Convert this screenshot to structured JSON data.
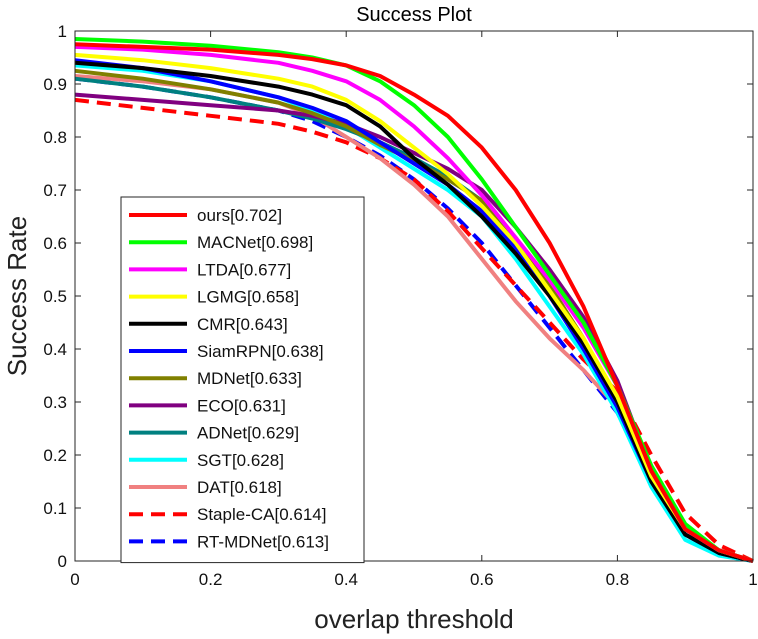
{
  "chart_data": {
    "type": "line",
    "title": "Success Plot",
    "xlabel": "overlap threshold",
    "ylabel": "Success Rate",
    "xlim": [
      0,
      1
    ],
    "ylim": [
      0,
      1
    ],
    "xticks": [
      "0",
      "0.2",
      "0.4",
      "0.6",
      "0.8",
      "1"
    ],
    "yticks": [
      "0",
      "0.1",
      "0.2",
      "0.3",
      "0.4",
      "0.5",
      "0.6",
      "0.7",
      "0.8",
      "0.9",
      "1"
    ],
    "grid": false,
    "legend_position": "lower-left",
    "series": [
      {
        "name": "ours[0.702]",
        "color": "#ff0000",
        "dashed": false,
        "x": [
          0,
          0.1,
          0.2,
          0.3,
          0.35,
          0.4,
          0.45,
          0.5,
          0.55,
          0.6,
          0.65,
          0.7,
          0.75,
          0.8,
          0.85,
          0.9,
          0.95,
          1
        ],
        "y": [
          0.975,
          0.97,
          0.965,
          0.955,
          0.947,
          0.935,
          0.915,
          0.88,
          0.84,
          0.78,
          0.7,
          0.6,
          0.48,
          0.33,
          0.17,
          0.06,
          0.02,
          0
        ]
      },
      {
        "name": "MACNet[0.698]",
        "color": "#00ff00",
        "dashed": false,
        "x": [
          0,
          0.1,
          0.2,
          0.3,
          0.35,
          0.4,
          0.45,
          0.5,
          0.55,
          0.6,
          0.65,
          0.7,
          0.75,
          0.8,
          0.85,
          0.9,
          0.95,
          1
        ],
        "y": [
          0.985,
          0.98,
          0.972,
          0.96,
          0.95,
          0.935,
          0.905,
          0.86,
          0.8,
          0.72,
          0.63,
          0.54,
          0.45,
          0.33,
          0.18,
          0.07,
          0.02,
          0
        ]
      },
      {
        "name": "LTDA[0.677]",
        "color": "#ff00ff",
        "dashed": false,
        "x": [
          0,
          0.1,
          0.2,
          0.3,
          0.35,
          0.4,
          0.45,
          0.5,
          0.55,
          0.6,
          0.65,
          0.7,
          0.75,
          0.8,
          0.85,
          0.9,
          0.95,
          1
        ],
        "y": [
          0.97,
          0.965,
          0.955,
          0.94,
          0.925,
          0.905,
          0.87,
          0.82,
          0.76,
          0.69,
          0.61,
          0.53,
          0.44,
          0.33,
          0.17,
          0.06,
          0.02,
          0
        ]
      },
      {
        "name": "LGMG[0.658]",
        "color": "#ffff00",
        "dashed": false,
        "x": [
          0,
          0.1,
          0.2,
          0.3,
          0.35,
          0.4,
          0.45,
          0.5,
          0.55,
          0.6,
          0.65,
          0.7,
          0.75,
          0.8,
          0.85,
          0.9,
          0.95,
          1
        ],
        "y": [
          0.955,
          0.945,
          0.93,
          0.91,
          0.895,
          0.87,
          0.83,
          0.78,
          0.73,
          0.67,
          0.6,
          0.51,
          0.42,
          0.31,
          0.16,
          0.06,
          0.02,
          0
        ]
      },
      {
        "name": "CMR[0.643]",
        "color": "#000000",
        "dashed": false,
        "x": [
          0,
          0.1,
          0.2,
          0.3,
          0.35,
          0.4,
          0.45,
          0.5,
          0.55,
          0.6,
          0.65,
          0.7,
          0.75,
          0.8,
          0.85,
          0.9,
          0.95,
          1
        ],
        "y": [
          0.94,
          0.93,
          0.915,
          0.895,
          0.88,
          0.86,
          0.82,
          0.76,
          0.71,
          0.65,
          0.58,
          0.5,
          0.41,
          0.3,
          0.15,
          0.05,
          0.015,
          0
        ]
      },
      {
        "name": "SiamRPN[0.638]",
        "color": "#0000ff",
        "dashed": false,
        "x": [
          0,
          0.1,
          0.2,
          0.3,
          0.35,
          0.4,
          0.45,
          0.5,
          0.55,
          0.6,
          0.65,
          0.7,
          0.75,
          0.8,
          0.85,
          0.9,
          0.95,
          1
        ],
        "y": [
          0.945,
          0.93,
          0.905,
          0.875,
          0.855,
          0.83,
          0.79,
          0.75,
          0.71,
          0.66,
          0.59,
          0.5,
          0.4,
          0.29,
          0.15,
          0.05,
          0.015,
          0
        ]
      },
      {
        "name": "MDNet[0.633]",
        "color": "#808000",
        "dashed": false,
        "x": [
          0,
          0.1,
          0.2,
          0.3,
          0.35,
          0.4,
          0.45,
          0.5,
          0.55,
          0.6,
          0.65,
          0.7,
          0.75,
          0.8,
          0.85,
          0.9,
          0.95,
          1
        ],
        "y": [
          0.925,
          0.91,
          0.89,
          0.865,
          0.845,
          0.82,
          0.785,
          0.755,
          0.72,
          0.68,
          0.61,
          0.52,
          0.42,
          0.3,
          0.16,
          0.06,
          0.02,
          0
        ]
      },
      {
        "name": "ECO[0.631]",
        "color": "#800080",
        "dashed": false,
        "x": [
          0,
          0.1,
          0.2,
          0.3,
          0.35,
          0.4,
          0.45,
          0.5,
          0.55,
          0.6,
          0.65,
          0.7,
          0.75,
          0.8,
          0.85,
          0.9,
          0.95,
          1
        ],
        "y": [
          0.88,
          0.87,
          0.86,
          0.85,
          0.84,
          0.825,
          0.8,
          0.77,
          0.74,
          0.7,
          0.63,
          0.55,
          0.46,
          0.34,
          0.17,
          0.06,
          0.02,
          0
        ]
      },
      {
        "name": "ADNet[0.629]",
        "color": "#008080",
        "dashed": false,
        "x": [
          0,
          0.1,
          0.2,
          0.3,
          0.35,
          0.4,
          0.45,
          0.5,
          0.55,
          0.6,
          0.65,
          0.7,
          0.75,
          0.8,
          0.85,
          0.9,
          0.95,
          1
        ],
        "y": [
          0.91,
          0.895,
          0.875,
          0.85,
          0.835,
          0.815,
          0.79,
          0.76,
          0.725,
          0.68,
          0.6,
          0.51,
          0.41,
          0.3,
          0.16,
          0.05,
          0.015,
          0
        ]
      },
      {
        "name": "SGT[0.628]",
        "color": "#00ffff",
        "dashed": false,
        "x": [
          0,
          0.1,
          0.2,
          0.3,
          0.35,
          0.4,
          0.45,
          0.5,
          0.55,
          0.6,
          0.65,
          0.7,
          0.75,
          0.8,
          0.85,
          0.9,
          0.95,
          1
        ],
        "y": [
          0.935,
          0.925,
          0.905,
          0.875,
          0.85,
          0.82,
          0.78,
          0.74,
          0.7,
          0.65,
          0.57,
          0.48,
          0.39,
          0.28,
          0.14,
          0.04,
          0.01,
          0
        ]
      },
      {
        "name": "DAT[0.618]",
        "color": "#f08080",
        "dashed": false,
        "x": [
          0,
          0.1,
          0.2,
          0.3,
          0.35,
          0.4,
          0.45,
          0.5,
          0.55,
          0.6,
          0.65,
          0.7,
          0.75,
          0.8,
          0.85,
          0.9,
          0.95,
          1
        ],
        "y": [
          0.915,
          0.905,
          0.89,
          0.865,
          0.84,
          0.8,
          0.76,
          0.71,
          0.65,
          0.57,
          0.49,
          0.42,
          0.36,
          0.29,
          0.16,
          0.06,
          0.02,
          0
        ]
      },
      {
        "name": "Staple-CA[0.614]",
        "color": "#ff0000",
        "dashed": true,
        "x": [
          0,
          0.1,
          0.2,
          0.3,
          0.35,
          0.4,
          0.45,
          0.5,
          0.55,
          0.6,
          0.65,
          0.7,
          0.75,
          0.8,
          0.85,
          0.9,
          0.95,
          1
        ],
        "y": [
          0.87,
          0.855,
          0.84,
          0.825,
          0.81,
          0.79,
          0.76,
          0.72,
          0.66,
          0.59,
          0.52,
          0.45,
          0.38,
          0.32,
          0.2,
          0.09,
          0.03,
          0
        ]
      },
      {
        "name": "RT-MDNet[0.613]",
        "color": "#0000ff",
        "dashed": true,
        "x": [
          0,
          0.1,
          0.2,
          0.3,
          0.35,
          0.4,
          0.45,
          0.5,
          0.55,
          0.6,
          0.65,
          0.7,
          0.75,
          0.8,
          0.85,
          0.9,
          0.95,
          1
        ],
        "y": [
          0.91,
          0.895,
          0.875,
          0.85,
          0.83,
          0.8,
          0.765,
          0.72,
          0.665,
          0.6,
          0.52,
          0.44,
          0.36,
          0.28,
          0.15,
          0.05,
          0.015,
          0
        ]
      }
    ]
  }
}
